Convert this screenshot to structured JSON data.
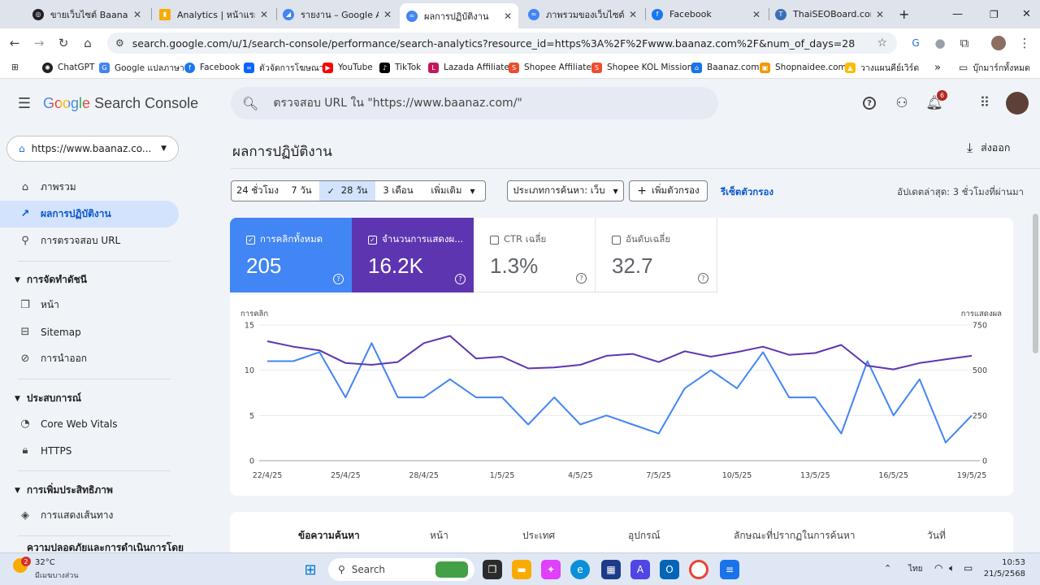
{
  "tabs": [
    {
      "label": "ขายเว็บไซต์ Baanaz.co",
      "favicon": "globe-icon",
      "color": "#202124"
    },
    {
      "label": "Analytics | หน้าแรก",
      "favicon": "analytics-icon",
      "color": "#f9ab00"
    },
    {
      "label": "รายงาน – Google AdS",
      "favicon": "adsense-icon",
      "color": "#4285f4"
    },
    {
      "label": "ผลการปฏิบัติงาน",
      "favicon": "search-console-icon",
      "color": "#4285f4"
    },
    {
      "label": "ภาพรวมของเว็บไซต์",
      "favicon": "search-console-icon",
      "color": "#4285f4"
    },
    {
      "label": "Facebook",
      "favicon": "facebook-icon",
      "color": "#1877f2"
    },
    {
      "label": "ThaiSEOBoard.com -",
      "favicon": "thaiseoboard-icon",
      "color": "#3b6fb6"
    }
  ],
  "address": {
    "url": "search.google.com/u/1/search-console/performance/search-analytics?resource_id=https%3A%2F%2Fwww.baanaz.com%2F&num_of_days=28"
  },
  "bookmarks": [
    {
      "label": "ChatGPT",
      "icon": "chatgpt-icon",
      "color": "#202124"
    },
    {
      "label": "Google แปลภาษา",
      "icon": "translate-icon",
      "color": "#4285f4"
    },
    {
      "label": "Facebook",
      "icon": "facebook-icon",
      "color": "#1877f2"
    },
    {
      "label": "ตัวจัดการโฆษณา",
      "icon": "meta-icon",
      "color": "#0866ff"
    },
    {
      "label": "YouTube",
      "icon": "youtube-icon",
      "color": "#ff0000"
    },
    {
      "label": "TikTok",
      "icon": "tiktok-icon",
      "color": "#000000"
    },
    {
      "label": "Lazada Affiliate",
      "icon": "lazada-icon",
      "color": "#c2185b"
    },
    {
      "label": "Shopee Affiliate",
      "icon": "shopee-icon",
      "color": "#ee4d2d"
    },
    {
      "label": "Shopee KOL Mission",
      "icon": "shopee-icon",
      "color": "#ee4d2d"
    },
    {
      "label": "Baanaz.com",
      "icon": "baanaz-icon",
      "color": "#1a73e8"
    },
    {
      "label": "Shopnaidee.com",
      "icon": "shop-icon",
      "color": "#f29900"
    },
    {
      "label": "วางแผนคีย์เวิร์ด",
      "icon": "ads-icon",
      "color": "#fbbc04"
    }
  ],
  "bookmarks_more": "»",
  "bookmarks_folder": "บุ๊กมาร์กทั้งหมด",
  "app": {
    "brand_google": "Google",
    "brand_product": "Search Console",
    "search_placeholder": "ตรวจสอบ URL ใน \"https://www.baanaz.com/\"",
    "notif_count": "6"
  },
  "sidebar": {
    "property": "https://www.baanaz.co...",
    "items_top": [
      {
        "label": "ภาพรวม",
        "icon": "home-icon"
      },
      {
        "label": "ผลการปฏิบัติงาน",
        "icon": "trending-icon"
      },
      {
        "label": "การตรวจสอบ URL",
        "icon": "search-icon"
      }
    ],
    "section_index": "การจัดทำดัชนี",
    "items_index": [
      {
        "label": "หน้า",
        "icon": "pages-icon"
      },
      {
        "label": "Sitemap",
        "icon": "sitemap-icon"
      },
      {
        "label": "การนำออก",
        "icon": "removal-icon"
      }
    ],
    "section_experience": "ประสบการณ์",
    "items_experience": [
      {
        "label": "Core Web Vitals",
        "icon": "speed-icon"
      },
      {
        "label": "HTTPS",
        "icon": "lock-icon"
      }
    ],
    "section_enhance": "การเพิ่มประสิทธิภาพ",
    "items_enhance": [
      {
        "label": "การแสดงเส้นทาง",
        "icon": "layers-icon"
      }
    ],
    "section_security": "ความปลอดภัยและการดำเนินการโดย"
  },
  "main": {
    "title": "ผลการปฏิบัติงาน",
    "export": "ส่งออก",
    "filters": {
      "r24h": "24 ชั่วโมง",
      "r7d": "7 วัน",
      "r28d": "28 วัน",
      "r3m": "3 เดือน",
      "more": "เพิ่มเติม",
      "search_type": "ประเภทการค้นหา: เว็บ",
      "add_filter": "เพิ่มตัวกรอง",
      "reset": "รีเซ็ตตัวกรอง",
      "updated": "อัปเดตล่าสุด: 3 ชั่วโมงที่ผ่านมา"
    },
    "metrics": [
      {
        "label": "การคลิกทั้งหมด",
        "value": "205",
        "checked": true,
        "color": "#4285f4"
      },
      {
        "label": "จำนวนการแสดงผ...",
        "value": "16.2K",
        "checked": true,
        "color": "#5e35b1"
      },
      {
        "label": "CTR เฉลี่ย",
        "value": "1.3%",
        "checked": false
      },
      {
        "label": "อันดับเฉลี่ย",
        "value": "32.7",
        "checked": false
      }
    ],
    "table_headers": [
      "ข้อความค้นหา",
      "หน้า",
      "ประเทศ",
      "อุปกรณ์",
      "ลักษณะที่ปรากฏในการค้นหา",
      "วันที่"
    ]
  },
  "chart_data": {
    "type": "line",
    "y_left_label": "การคลิก",
    "y_right_label": "การแสดงผล",
    "y_left_ticks": [
      "15",
      "10",
      "5",
      "0"
    ],
    "y_right_ticks": [
      "750",
      "500",
      "250",
      "0"
    ],
    "ylim_left": [
      0,
      15
    ],
    "ylim_right": [
      0,
      750
    ],
    "x_tick_labels": [
      "22/4/25",
      "25/4/25",
      "28/4/25",
      "1/5/25",
      "4/5/25",
      "7/5/25",
      "10/5/25",
      "13/5/25",
      "16/5/25",
      "19/5/25"
    ],
    "x_tick_index": [
      0,
      3,
      6,
      9,
      12,
      15,
      18,
      21,
      24,
      27
    ],
    "series": [
      {
        "name": "การคลิกทั้งหมด",
        "axis": "left",
        "color": "#4285f4",
        "values": [
          11,
          11,
          12,
          7,
          13,
          7,
          7,
          9,
          7,
          7,
          4,
          7,
          4,
          5,
          4,
          3,
          8,
          10,
          8,
          12,
          7,
          7,
          3,
          11,
          5,
          9,
          2,
          5
        ]
      },
      {
        "name": "จำนวนการแสดงผล",
        "axis": "right",
        "color": "#5e35b1",
        "values": [
          660,
          630,
          610,
          540,
          530,
          545,
          650,
          690,
          565,
          575,
          510,
          515,
          530,
          580,
          590,
          545,
          605,
          575,
          600,
          630,
          585,
          595,
          640,
          525,
          505,
          540,
          560,
          580
        ]
      }
    ]
  },
  "taskbar": {
    "weather_temp": "32°C",
    "weather_desc": "มีเมฆบางส่วน",
    "weather_badge": "2",
    "search": "Search",
    "lang": "ไทย",
    "time": "10:53",
    "date": "21/5/2568"
  }
}
